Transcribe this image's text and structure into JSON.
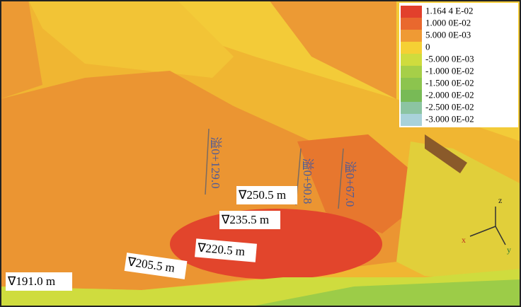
{
  "legend": {
    "items": [
      {
        "label": "1.164 4 E-02",
        "color": "#e2402c"
      },
      {
        "label": "1.000 0E-02",
        "color": "#e9682e"
      },
      {
        "label": "5.000 0E-03",
        "color": "#ef9a34"
      },
      {
        "label": "0",
        "color": "#f5d034"
      },
      {
        "label": "-5.000 0E-03",
        "color": "#cfdc3e"
      },
      {
        "label": "-1.000 0E-02",
        "color": "#a6cf48"
      },
      {
        "label": "-1.500 0E-02",
        "color": "#8cc44e"
      },
      {
        "label": "-2.000 0E-02",
        "color": "#78ba56"
      },
      {
        "label": "-2.500 0E-02",
        "color": "#8cc4a2"
      },
      {
        "label": "-3.000 0E-02",
        "color": "#a9d2da"
      }
    ]
  },
  "elevations": [
    "∇250.5 m",
    "∇235.5 m",
    "∇220.5 m",
    "∇205.5 m",
    "∇191.0 m"
  ],
  "sections": [
    "溢0+129.0",
    "溢0+90.8",
    "溢0+67.0"
  ],
  "axes": [
    "z",
    "x",
    "y"
  ]
}
